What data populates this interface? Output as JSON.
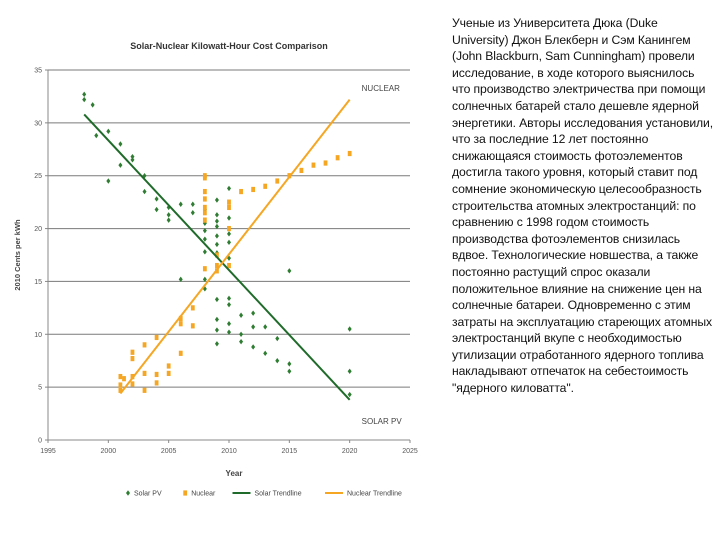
{
  "chart_data": {
    "type": "scatter",
    "title": "Solar-Nuclear Kilowatt-Hour Cost Comparison",
    "xlabel": "Year",
    "ylabel": "2010 Cents per kWh",
    "xlim": [
      1995,
      2025
    ],
    "ylim": [
      0,
      35
    ],
    "xticks": [
      "1995",
      "2000",
      "2005",
      "2010",
      "2015",
      "2020",
      "2025"
    ],
    "yticks": [
      "0",
      "5",
      "10",
      "15",
      "20",
      "25",
      "30",
      "35"
    ],
    "grid": true,
    "legend_position": "bottom",
    "annotations": [
      {
        "text": "NUCLEAR",
        "x": 2020,
        "y": 33
      },
      {
        "text": "SOLAR PV",
        "x": 2020,
        "y": 1.5
      }
    ],
    "series": [
      {
        "name": "Solar PV",
        "kind": "scatter",
        "color": "#2e7d32",
        "marker": "diamond",
        "points": [
          [
            1998,
            32.7
          ],
          [
            1998,
            32.2
          ],
          [
            1998.7,
            31.7
          ],
          [
            1999,
            28.8
          ],
          [
            2000,
            29.2
          ],
          [
            2000,
            24.5
          ],
          [
            2001,
            28
          ],
          [
            2001,
            26
          ],
          [
            2002,
            26.8
          ],
          [
            2002,
            26.5
          ],
          [
            2003,
            25
          ],
          [
            2003,
            23.5
          ],
          [
            2004,
            22.8
          ],
          [
            2004,
            21.8
          ],
          [
            2005,
            22
          ],
          [
            2005,
            21.3
          ],
          [
            2005,
            20.8
          ],
          [
            2006,
            22.3
          ],
          [
            2006,
            15.2
          ],
          [
            2007,
            22.3
          ],
          [
            2007,
            21.5
          ],
          [
            2008,
            21.8
          ],
          [
            2008,
            20.5
          ],
          [
            2008,
            19.8
          ],
          [
            2008,
            19
          ],
          [
            2008,
            17.8
          ],
          [
            2009,
            22.7
          ],
          [
            2009,
            21.3
          ],
          [
            2009,
            20.7
          ],
          [
            2009,
            20.2
          ],
          [
            2009,
            19.3
          ],
          [
            2009,
            18.5
          ],
          [
            2009,
            17.7
          ],
          [
            2010,
            23.8
          ],
          [
            2010,
            21
          ],
          [
            2010,
            19.5
          ],
          [
            2010,
            18.7
          ],
          [
            2010,
            17.2
          ],
          [
            2008,
            15.2
          ],
          [
            2008,
            14.3
          ],
          [
            2009,
            13.3
          ],
          [
            2009,
            11.4
          ],
          [
            2009,
            10.4
          ],
          [
            2009,
            9.1
          ],
          [
            2010,
            13.4
          ],
          [
            2010,
            12.8
          ],
          [
            2010,
            11
          ],
          [
            2010,
            10.2
          ],
          [
            2011,
            11.8
          ],
          [
            2011,
            10
          ],
          [
            2011,
            9.3
          ],
          [
            2012,
            12
          ],
          [
            2012,
            10.7
          ],
          [
            2012,
            8.8
          ],
          [
            2013,
            8.2
          ],
          [
            2013,
            10.7
          ],
          [
            2014,
            9.6
          ],
          [
            2014,
            7.5
          ],
          [
            2015,
            16
          ],
          [
            2015,
            7.2
          ],
          [
            2015,
            6.5
          ],
          [
            2020,
            10.5
          ],
          [
            2020,
            6.5
          ],
          [
            2020,
            4.3
          ]
        ]
      },
      {
        "name": "Nuclear",
        "kind": "scatter",
        "color": "#f5a623",
        "marker": "square",
        "points": [
          [
            2001,
            6
          ],
          [
            2001,
            5.2
          ],
          [
            2001,
            4.7
          ],
          [
            2001.3,
            5.8
          ],
          [
            2002,
            8.3
          ],
          [
            2002,
            7.7
          ],
          [
            2002,
            6
          ],
          [
            2002,
            5.3
          ],
          [
            2003,
            9
          ],
          [
            2003,
            6.3
          ],
          [
            2003,
            4.7
          ],
          [
            2004,
            9.7
          ],
          [
            2004,
            6.2
          ],
          [
            2004,
            5.4
          ],
          [
            2005,
            7
          ],
          [
            2005,
            6.3
          ],
          [
            2006,
            11.5
          ],
          [
            2006,
            11
          ],
          [
            2006,
            8.2
          ],
          [
            2007,
            12.5
          ],
          [
            2007,
            10.8
          ],
          [
            2008,
            25
          ],
          [
            2008,
            24.8
          ],
          [
            2008,
            23.5
          ],
          [
            2008,
            22.8
          ],
          [
            2008,
            22
          ],
          [
            2008,
            21.5
          ],
          [
            2008,
            20.8
          ],
          [
            2008,
            16.2
          ],
          [
            2009,
            17.5
          ],
          [
            2009,
            16.5
          ],
          [
            2009,
            16
          ],
          [
            2010,
            16.5
          ],
          [
            2010,
            20
          ],
          [
            2010,
            22
          ],
          [
            2010,
            22.5
          ],
          [
            2011,
            23.5
          ],
          [
            2012,
            23.7
          ],
          [
            2013,
            24
          ],
          [
            2014,
            24.5
          ],
          [
            2015,
            25
          ],
          [
            2016,
            25.5
          ],
          [
            2017,
            26
          ],
          [
            2018,
            26.2
          ],
          [
            2019,
            26.7
          ],
          [
            2020,
            27.1
          ]
        ]
      },
      {
        "name": "Solar Trendline",
        "kind": "line",
        "color": "#1f6b2a",
        "points": [
          [
            1998,
            30.8
          ],
          [
            2020,
            3.8
          ]
        ]
      },
      {
        "name": "Nuclear Trendline",
        "kind": "line",
        "color": "#f5a623",
        "points": [
          [
            2001,
            4.4
          ],
          [
            2020,
            32.2
          ]
        ]
      }
    ]
  },
  "description": "Ученые из Университета Дюка (Duke University) Джон Блекберн и Сэм Канингем (John Blackburn, Sam Cunningham) провели исследование, в ходе которого выяснилось что производство электричества при помощи солнечных батарей стало дешевле ядерной энергетики. Авторы исследования установили, что за последние 12 лет постоянно снижающаяся стоимость фотоэлементов достигла такого уровня, который ставит под сомнение экономическую целесообразность строительства атомных электростанций: по сравнению с 1998 годом стоимость производства фотоэлементов снизилась вдвое. Технологические новшества, а также постоянно растущий спрос оказали положительное влияние на снижение цен на солнечные батареи. Одновременно с этим затраты на эксплуатацию стареющих атомных электростанций вкупе с необходимостью утилизации отработанного ядерного топлива накладывают отпечаток на себестоимость \"ядерного киловатта\"."
}
